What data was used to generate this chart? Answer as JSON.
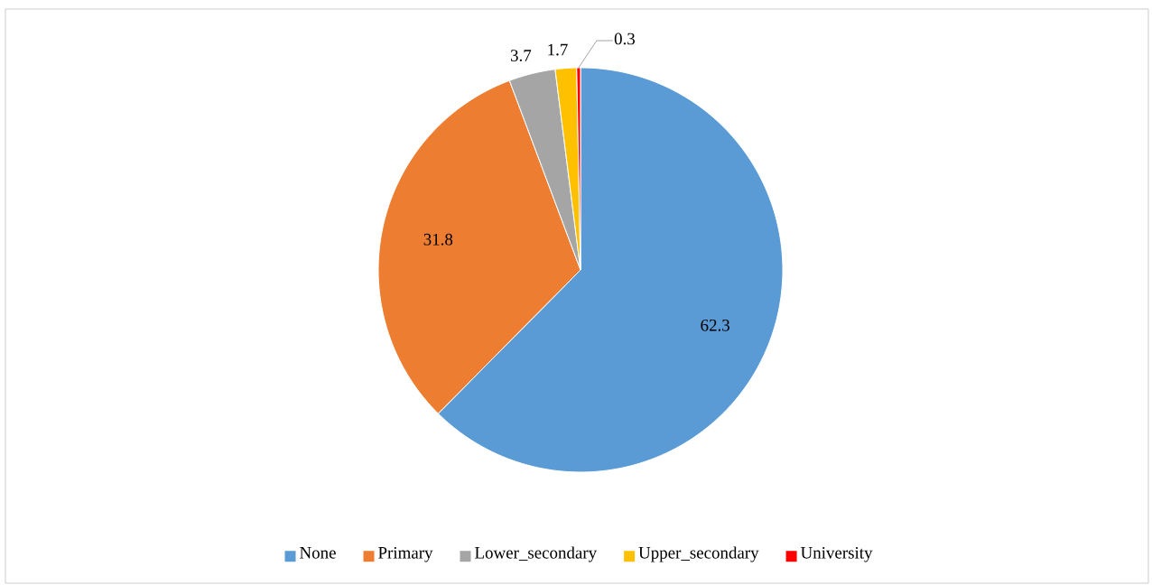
{
  "chart_data": {
    "type": "pie",
    "categories": [
      "None",
      "Primary",
      "Lower_secondary",
      "Upper_secondary",
      "University"
    ],
    "values": [
      62.3,
      31.8,
      3.7,
      1.7,
      0.3
    ],
    "colors": [
      "#5b9bd5",
      "#ed7d31",
      "#a5a5a5",
      "#ffc000",
      "#ff0000"
    ],
    "data_labels": true,
    "legend": "bottom"
  }
}
